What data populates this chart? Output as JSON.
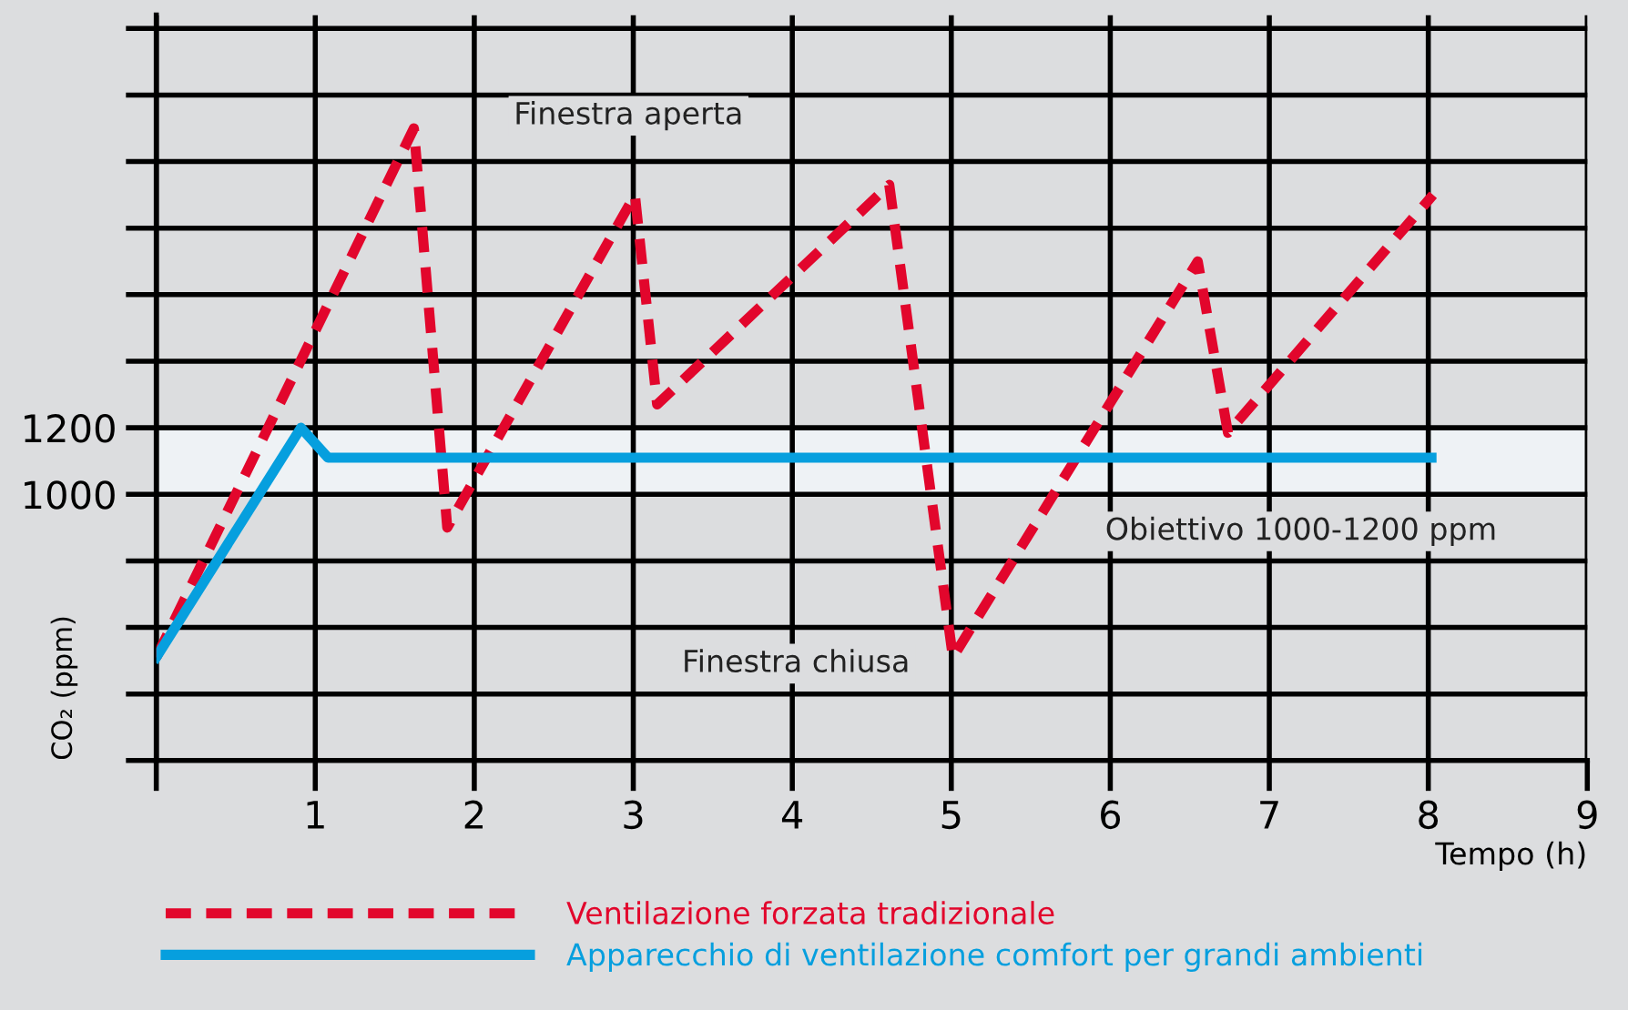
{
  "chart_data": {
    "type": "line",
    "x": [
      0,
      1.62,
      1.83,
      3.01,
      3.15,
      4.61,
      5.01,
      6.55,
      6.74,
      8.03
    ],
    "series": [
      {
        "name": "Ventilazione forzata tradizionale",
        "color": "#e2062c",
        "line_style": "dashed",
        "values": [
          510,
          2100,
          900,
          1900,
          1270,
          1930,
          510,
          1700,
          1185,
          1900
        ]
      },
      {
        "name": "Apparecchio di ventilazione comfort per grandi ambienti",
        "color": "#069fde",
        "line_style": "solid",
        "x": [
          0,
          0.91,
          1.08,
          8.02
        ],
        "values": [
          510,
          1200,
          1110,
          1110
        ]
      }
    ],
    "xlabel": "Tempo (h)",
    "ylabel": "CO₂ (ppm)",
    "xlim": [
      0,
      9
    ],
    "xticks": [
      {
        "value": 0,
        "label": null
      },
      1,
      2,
      3,
      4,
      5,
      6,
      7,
      8,
      9
    ],
    "ylim": [
      200,
      2440
    ],
    "yticks": [
      {
        "value": 200,
        "label": null
      },
      {
        "value": 400,
        "label": null
      },
      {
        "value": 600,
        "label": null
      },
      {
        "value": 800,
        "label": null
      },
      1000,
      1200,
      {
        "value": 1400,
        "label": null
      },
      {
        "value": 1600,
        "label": null
      },
      {
        "value": 1800,
        "label": null
      },
      {
        "value": 2000,
        "label": null
      },
      {
        "value": 2200,
        "label": null
      },
      {
        "value": 2400,
        "label": null
      }
    ],
    "bands": [
      {
        "axis": "y",
        "from": 1000,
        "to": 1200,
        "color": "#eef2f5",
        "label": "Obiettivo 1000-1200 ppm"
      }
    ],
    "annotations": [
      "Finestra aperta",
      "Finestra chiusa"
    ],
    "grid": true,
    "legend": "bottom",
    "marker": "none"
  }
}
